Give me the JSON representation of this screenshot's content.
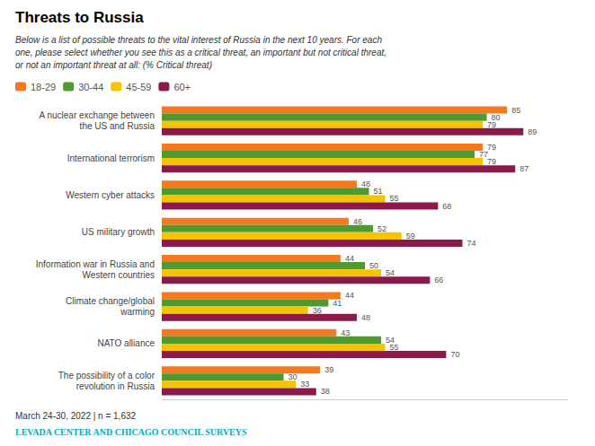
{
  "chart_data": {
    "type": "bar",
    "orientation": "horizontal",
    "title": "Threats to Russia",
    "subtitle": "Below is a list of possible threats to the vital interest of Russia in the next 10 years. For each\none, please select whether you see this as a critical threat, an important but not critical threat,\nor not an important threat at all: (% Critical threat)",
    "annotations": [
      "March 24-30, 2022 | n = 1,632",
      "LEVADA CENTER AND CHICAGO COUNCIL SURVEYS"
    ],
    "categories": [
      "A nuclear exchange between\nthe US and Russia",
      "International terrorism",
      "Western cyber attacks",
      "US military growth",
      "Information war in Russia and\nWestern countries",
      "Climate change/global\nwarming",
      "NATO alliance",
      "The possibility of a color\nrevolution in Russia"
    ],
    "series": [
      {
        "name": "18-29",
        "color": "#F47920",
        "values": [
          85,
          79,
          48,
          46,
          44,
          44,
          43,
          39
        ]
      },
      {
        "name": "30-44",
        "color": "#4E9A2E",
        "values": [
          80,
          77,
          51,
          52,
          50,
          41,
          54,
          30
        ]
      },
      {
        "name": "45-59",
        "color": "#F5C400",
        "values": [
          79,
          79,
          55,
          59,
          54,
          36,
          55,
          33
        ]
      },
      {
        "name": "60+",
        "color": "#8B1A4A",
        "values": [
          89,
          87,
          68,
          74,
          66,
          48,
          70,
          38
        ]
      }
    ],
    "xlim": [
      0,
      100
    ],
    "data_labels": true,
    "tick_labels": "y",
    "grid": false,
    "legend": "top left"
  }
}
